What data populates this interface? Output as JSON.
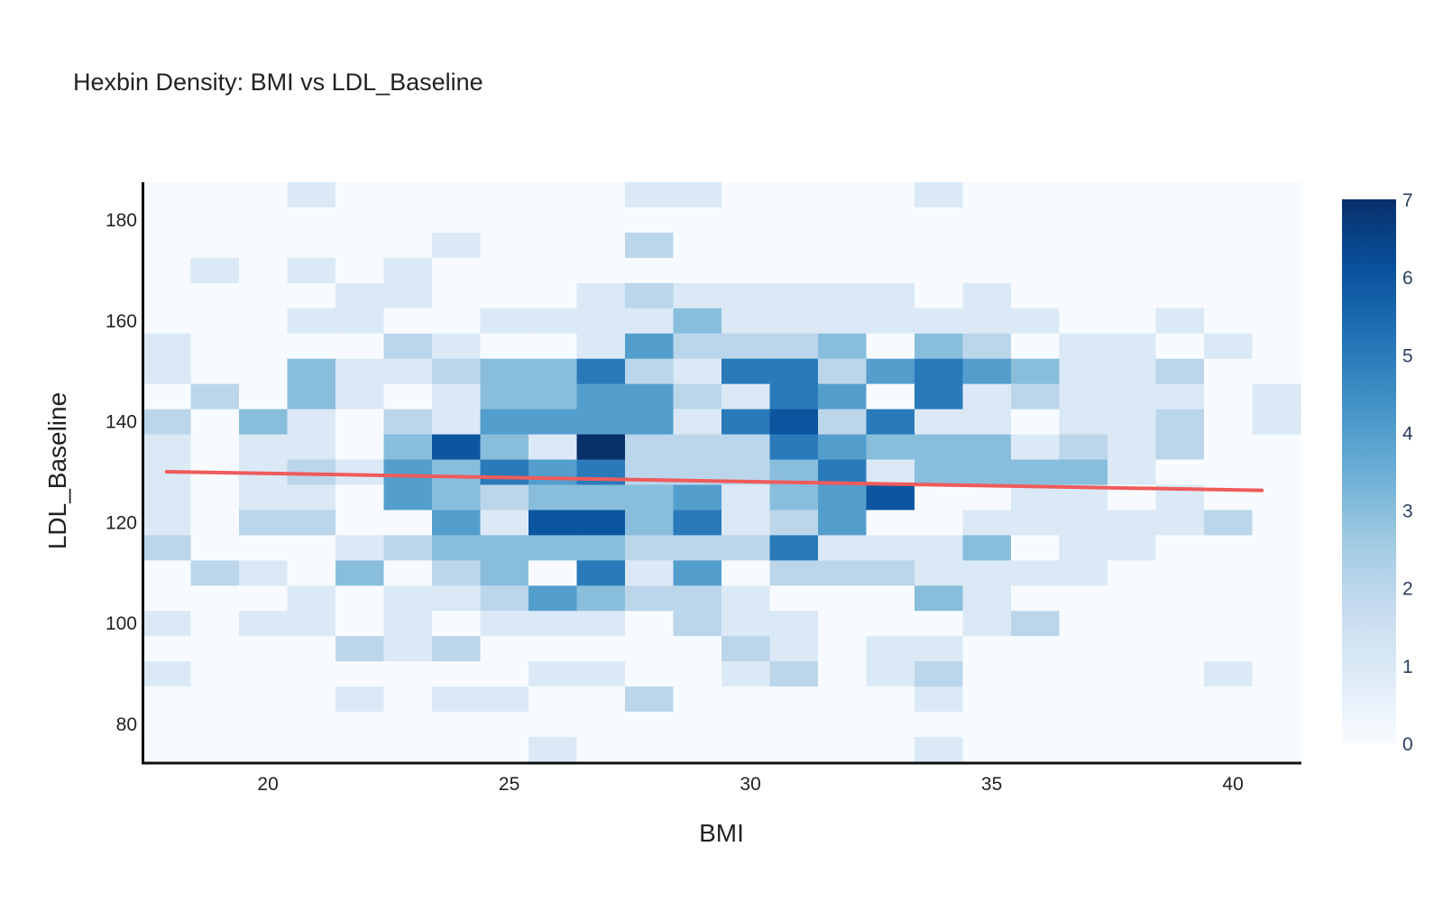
{
  "chart_data": {
    "type": "heatmap",
    "title": "Hexbin Density: BMI vs LDL_Baseline",
    "xlabel": "BMI",
    "ylabel": "LDL_Baseline",
    "xlim": [
      17.4,
      41.4
    ],
    "ylim": [
      72.5,
      187.5
    ],
    "x_ticks": [
      20,
      25,
      30,
      35,
      40
    ],
    "y_ticks": [
      80,
      100,
      120,
      140,
      160,
      180
    ],
    "bin_x_start": 17.4,
    "bin_x_width": 1.0,
    "bin_y_start": 72.5,
    "bin_y_width": 5.0,
    "grid": false,
    "colorscale": "Blues",
    "colorscale_stops": [
      "#f7fbff",
      "#deebf7",
      "#c6dbef",
      "#9ecae1",
      "#6baed6",
      "#4292c6",
      "#2171b5",
      "#08519c",
      "#08306b"
    ],
    "colorbar": {
      "min": 0,
      "max": 7,
      "ticks": [
        0,
        1,
        2,
        3,
        4,
        5,
        6,
        7
      ]
    },
    "z": [
      [
        0,
        0,
        0,
        1,
        0,
        0,
        0,
        0,
        0,
        0,
        1,
        1,
        0,
        0,
        0,
        0,
        1,
        0,
        0,
        0,
        0,
        0,
        0,
        0
      ],
      [
        0,
        0,
        0,
        0,
        0,
        0,
        0,
        0,
        0,
        0,
        0,
        0,
        0,
        0,
        0,
        0,
        0,
        0,
        0,
        0,
        0,
        0,
        0,
        0
      ],
      [
        0,
        0,
        0,
        0,
        0,
        0,
        1,
        0,
        0,
        0,
        2,
        0,
        0,
        0,
        0,
        0,
        0,
        0,
        0,
        0,
        0,
        0,
        0,
        0
      ],
      [
        0,
        1,
        0,
        1,
        0,
        1,
        0,
        0,
        0,
        0,
        0,
        0,
        0,
        0,
        0,
        0,
        0,
        0,
        0,
        0,
        0,
        0,
        0,
        0
      ],
      [
        0,
        0,
        0,
        0,
        1,
        1,
        0,
        0,
        0,
        1,
        2,
        1,
        1,
        1,
        1,
        1,
        0,
        1,
        0,
        0,
        0,
        0,
        0,
        0
      ],
      [
        0,
        0,
        0,
        1,
        1,
        0,
        0,
        1,
        1,
        1,
        1,
        3,
        1,
        1,
        1,
        1,
        1,
        1,
        1,
        0,
        0,
        1,
        0,
        0
      ],
      [
        1,
        0,
        0,
        0,
        0,
        2,
        1,
        0,
        0,
        1,
        4,
        2,
        2,
        2,
        3,
        0,
        3,
        2,
        0,
        1,
        1,
        0,
        1,
        0
      ],
      [
        1,
        0,
        0,
        3,
        1,
        1,
        2,
        3,
        3,
        5,
        2,
        1,
        5,
        5,
        2,
        4,
        5,
        4,
        3,
        1,
        1,
        2,
        0,
        0
      ],
      [
        0,
        2,
        0,
        3,
        1,
        0,
        1,
        3,
        3,
        4,
        4,
        2,
        1,
        5,
        4,
        0,
        5,
        1,
        2,
        1,
        1,
        1,
        0,
        1
      ],
      [
        2,
        0,
        3,
        1,
        0,
        2,
        1,
        4,
        4,
        4,
        4,
        1,
        5,
        6,
        2,
        5,
        1,
        1,
        0,
        1,
        1,
        2,
        0,
        1
      ],
      [
        1,
        0,
        1,
        1,
        0,
        3,
        6,
        3,
        1,
        7,
        2,
        2,
        2,
        5,
        4,
        3,
        3,
        3,
        1,
        2,
        1,
        2,
        0,
        0
      ],
      [
        1,
        0,
        1,
        2,
        1,
        4,
        3,
        5,
        4,
        5,
        2,
        2,
        2,
        3,
        5,
        1,
        3,
        3,
        3,
        3,
        1,
        0,
        0,
        0
      ],
      [
        1,
        0,
        1,
        1,
        0,
        4,
        3,
        2,
        3,
        3,
        3,
        4,
        1,
        3,
        4,
        6,
        0,
        0,
        1,
        1,
        0,
        1,
        0,
        0
      ],
      [
        1,
        0,
        2,
        2,
        0,
        0,
        4,
        1,
        6,
        6,
        3,
        5,
        1,
        2,
        4,
        0,
        0,
        1,
        1,
        1,
        1,
        1,
        2,
        0
      ],
      [
        2,
        0,
        0,
        0,
        1,
        2,
        3,
        3,
        3,
        3,
        2,
        2,
        2,
        5,
        1,
        1,
        1,
        3,
        0,
        1,
        1,
        0,
        0,
        0
      ],
      [
        0,
        2,
        1,
        0,
        3,
        0,
        2,
        3,
        0,
        5,
        1,
        4,
        0,
        2,
        2,
        2,
        1,
        1,
        1,
        1,
        0,
        0,
        0,
        0
      ],
      [
        0,
        0,
        0,
        1,
        0,
        1,
        1,
        2,
        4,
        3,
        2,
        2,
        1,
        0,
        0,
        0,
        3,
        1,
        0,
        0,
        0,
        0,
        0,
        0
      ],
      [
        1,
        0,
        1,
        1,
        0,
        1,
        0,
        1,
        1,
        1,
        0,
        2,
        1,
        1,
        0,
        0,
        0,
        1,
        2,
        0,
        0,
        0,
        0,
        0
      ],
      [
        0,
        0,
        0,
        0,
        2,
        1,
        2,
        0,
        0,
        0,
        0,
        0,
        2,
        1,
        0,
        1,
        1,
        0,
        0,
        0,
        0,
        0,
        0,
        0
      ],
      [
        1,
        0,
        0,
        0,
        0,
        0,
        0,
        0,
        1,
        1,
        0,
        0,
        1,
        2,
        0,
        1,
        2,
        0,
        0,
        0,
        0,
        0,
        1,
        0
      ],
      [
        0,
        0,
        0,
        0,
        1,
        0,
        1,
        1,
        0,
        0,
        2,
        0,
        0,
        0,
        0,
        0,
        1,
        0,
        0,
        0,
        0,
        0,
        0,
        0
      ],
      [
        0,
        0,
        0,
        0,
        0,
        0,
        0,
        0,
        0,
        0,
        0,
        0,
        0,
        0,
        0,
        0,
        0,
        0,
        0,
        0,
        0,
        0,
        0,
        0
      ],
      [
        0,
        0,
        0,
        0,
        0,
        0,
        0,
        0,
        1,
        0,
        0,
        0,
        0,
        0,
        0,
        0,
        1,
        0,
        0,
        0,
        0,
        0,
        0,
        0
      ]
    ],
    "trend_line": {
      "color": "#ef5b5b",
      "x": [
        17.9,
        40.6
      ],
      "y": [
        130.1,
        126.4
      ]
    }
  }
}
